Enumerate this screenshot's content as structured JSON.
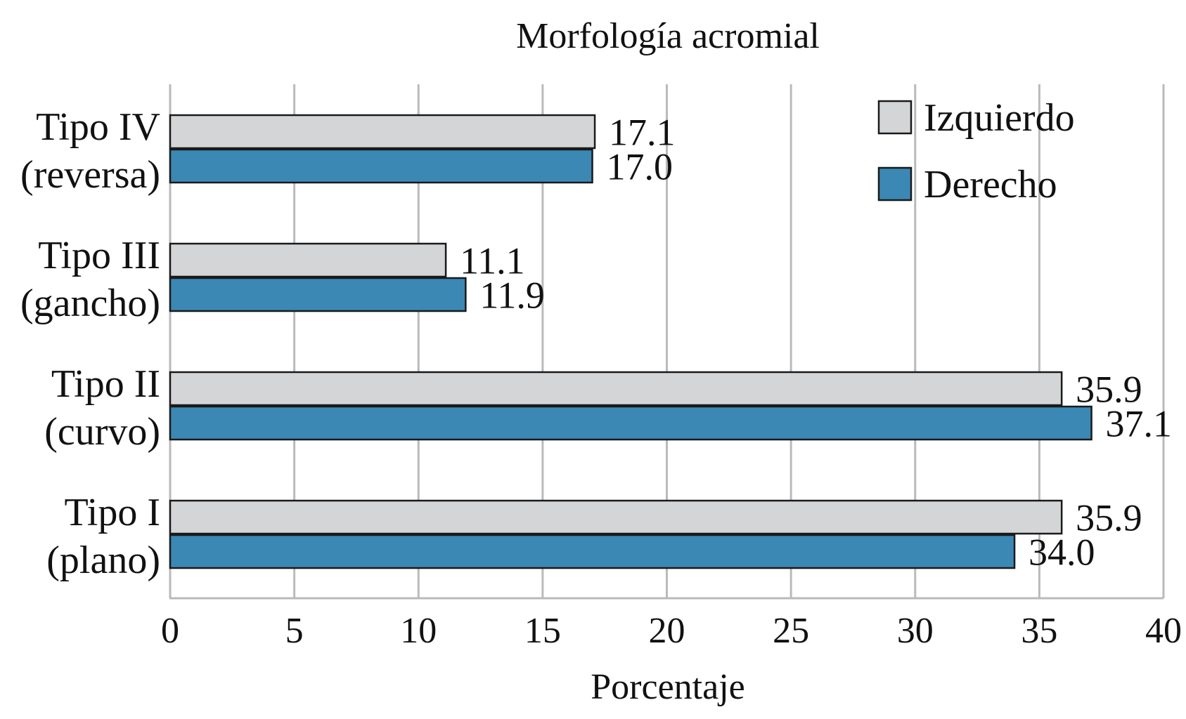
{
  "chart_data": {
    "type": "bar",
    "orientation": "horizontal",
    "title": "Morfología acromial",
    "xlabel": "Porcentaje",
    "ylabel": "",
    "xlim": [
      0,
      40
    ],
    "xticks": [
      0,
      5,
      10,
      15,
      20,
      25,
      30,
      35,
      40
    ],
    "grid": true,
    "legend_position": "top-right",
    "categories": [
      {
        "line1": "Tipo IV",
        "line2": "(reversa)"
      },
      {
        "line1": "Tipo III",
        "line2": "(gancho)"
      },
      {
        "line1": "Tipo II",
        "line2": "(curvo)"
      },
      {
        "line1": "Tipo I",
        "line2": "(plano)"
      }
    ],
    "series": [
      {
        "name": "Izquierdo",
        "color": "#d4d5d7",
        "values": [
          17.1,
          11.1,
          35.9,
          35.9
        ],
        "labels": [
          "17.1",
          "11.1",
          "35.9",
          "35.9"
        ]
      },
      {
        "name": "Derecho",
        "color": "#3b88b5",
        "values": [
          17.0,
          11.9,
          37.1,
          34.0
        ],
        "labels": [
          "17.0",
          "11.9",
          "37.1",
          "34.0"
        ]
      }
    ]
  }
}
